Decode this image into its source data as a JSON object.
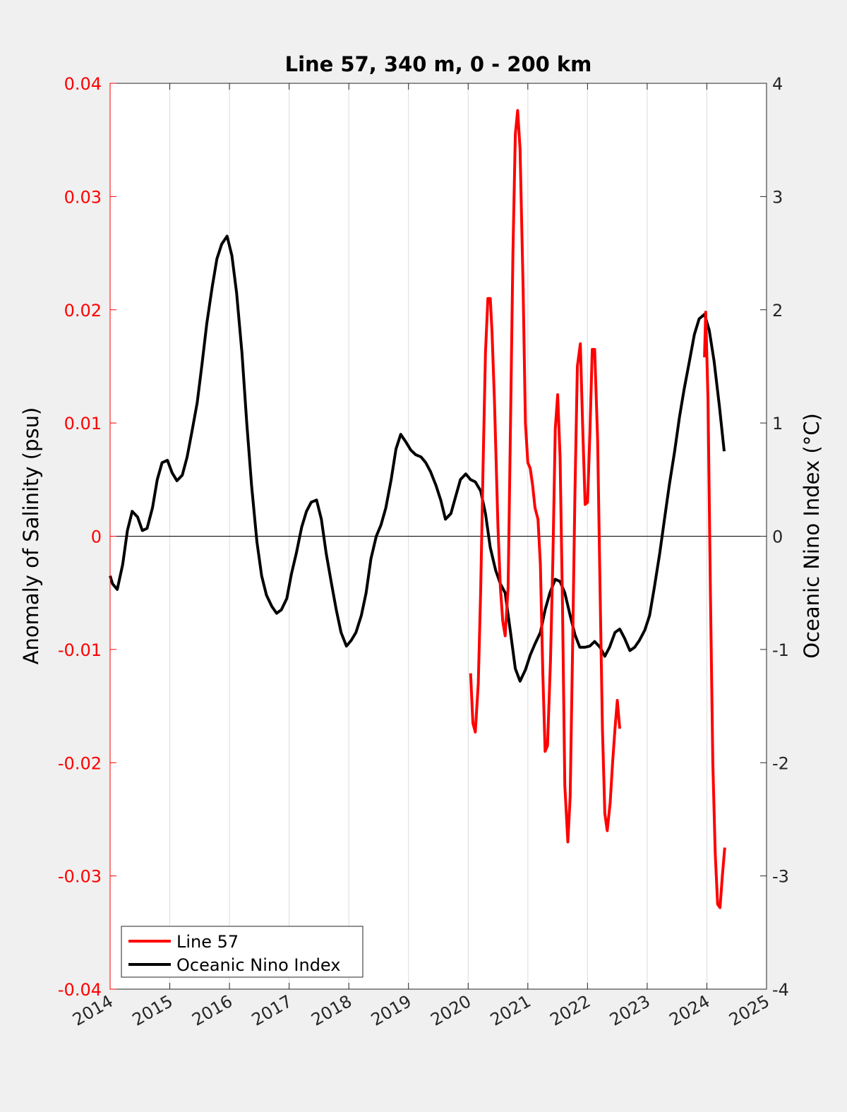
{
  "chart_data": {
    "type": "line",
    "title": "Line 57, 340 m, 0 - 200 km",
    "xlabel": "",
    "ylabel_left": "Anomaly of Salinity (psu)",
    "ylabel_right": "Oceanic Nino Index (°C)",
    "xlim": [
      2014,
      2025
    ],
    "ylim_left": [
      -0.04,
      0.04
    ],
    "ylim_right": [
      -4,
      4
    ],
    "x_ticks": [
      "2014",
      "2015",
      "2016",
      "2017",
      "2018",
      "2019",
      "2020",
      "2021",
      "2022",
      "2023",
      "2024",
      "2025"
    ],
    "y_ticks_left": [
      "-0.04",
      "-0.03",
      "-0.02",
      "-0.01",
      "0",
      "0.01",
      "0.02",
      "0.03",
      "0.04"
    ],
    "y_ticks_right": [
      "-4",
      "-3",
      "-2",
      "-1",
      "0",
      "1",
      "2",
      "3",
      "4"
    ],
    "grid": "vertical",
    "zero_line": true,
    "legend_position": "bottom-left",
    "colors": {
      "salinity": "#ff0000",
      "oni": "#000000",
      "left_axis": "#ff0000",
      "right_axis": "#262626",
      "background": "#f0f0f0",
      "plot_area": "#ffffff"
    },
    "series": [
      {
        "name": "Line 57",
        "axis": "left",
        "x": [
          2020.04,
          2020.08,
          2020.12,
          2020.17,
          2020.21,
          2020.25,
          2020.29,
          2020.33,
          2020.37,
          2020.4,
          2020.44,
          2020.5,
          2020.54,
          2020.58,
          2020.62,
          2020.67,
          2020.71,
          2020.75,
          2020.79,
          2020.83,
          2020.87,
          2020.92,
          2020.96,
          2021.0,
          2021.04,
          2021.08,
          2021.12,
          2021.17,
          2021.21,
          2021.25,
          2021.29,
          2021.33,
          2021.38,
          2021.42,
          2021.46,
          2021.5,
          2021.54,
          2021.58,
          2021.62,
          2021.67,
          2021.71,
          2021.75,
          2021.79,
          2021.83,
          2021.88,
          2021.92,
          2021.96,
          2022.0,
          2022.04,
          2022.08,
          2022.12,
          2022.17,
          2022.21,
          2022.25,
          2022.29,
          2022.33,
          2022.38,
          2022.42,
          2022.46,
          2022.5,
          2022.54,
          2022.58,
          2022.62,
          2022.67,
          2022.71,
          2022.75,
          2022.79,
          2022.83,
          2022.88,
          2022.92,
          2022.96,
          2023.0,
          2023.04,
          2023.96,
          2023.98,
          2024.02,
          2024.06,
          2024.1,
          2024.14,
          2024.18,
          2024.22,
          2024.26,
          2024.3
        ],
        "y": [
          -0.0121,
          -0.0165,
          -0.0173,
          -0.013,
          -0.0048,
          0.0062,
          0.0162,
          0.021,
          0.021,
          0.018,
          0.012,
          0.0008,
          -0.0045,
          -0.0075,
          -0.0088,
          -0.0045,
          0.01,
          0.025,
          0.0355,
          0.0376,
          0.0342,
          0.022,
          0.01,
          0.0065,
          0.006,
          0.0045,
          0.0025,
          0.0015,
          -0.0025,
          -0.012,
          -0.019,
          -0.0185,
          -0.011,
          -0.002,
          0.0095,
          0.0125,
          0.007,
          -0.006,
          -0.022,
          -0.027,
          -0.023,
          -0.01,
          0.004,
          0.015,
          0.017,
          0.0095,
          0.0028,
          0.003,
          0.009,
          0.0165,
          0.0165,
          0.0085,
          -0.0045,
          -0.017,
          -0.0245,
          -0.026,
          -0.0235,
          -0.02,
          -0.017,
          -0.0145,
          -0.017,
          null,
          null,
          null,
          null,
          null,
          null,
          null,
          null,
          null,
          null,
          null,
          null,
          0.0158,
          0.0198,
          0.012,
          -0.005,
          -0.02,
          -0.028,
          -0.0325,
          -0.0328,
          -0.03,
          -0.0275
        ]
      },
      {
        "name": "Oceanic Nino Index",
        "axis": "right",
        "x": [
          2014.0,
          2014.04,
          2014.12,
          2014.21,
          2014.29,
          2014.37,
          2014.46,
          2014.54,
          2014.62,
          2014.71,
          2014.79,
          2014.87,
          2014.96,
          2015.04,
          2015.12,
          2015.21,
          2015.29,
          2015.37,
          2015.46,
          2015.54,
          2015.62,
          2015.71,
          2015.79,
          2015.87,
          2015.96,
          2016.04,
          2016.12,
          2016.21,
          2016.29,
          2016.37,
          2016.46,
          2016.54,
          2016.62,
          2016.71,
          2016.79,
          2016.87,
          2016.96,
          2017.04,
          2017.12,
          2017.21,
          2017.29,
          2017.37,
          2017.46,
          2017.54,
          2017.62,
          2017.71,
          2017.79,
          2017.87,
          2017.96,
          2018.04,
          2018.12,
          2018.21,
          2018.29,
          2018.37,
          2018.46,
          2018.54,
          2018.62,
          2018.71,
          2018.79,
          2018.87,
          2018.96,
          2019.04,
          2019.12,
          2019.21,
          2019.29,
          2019.37,
          2019.46,
          2019.54,
          2019.62,
          2019.71,
          2019.79,
          2019.87,
          2019.96,
          2020.04,
          2020.12,
          2020.21,
          2020.29,
          2020.37,
          2020.46,
          2020.54,
          2020.62,
          2020.71,
          2020.79,
          2020.87,
          2020.96,
          2021.04,
          2021.12,
          2021.21,
          2021.29,
          2021.37,
          2021.46,
          2021.54,
          2021.62,
          2021.71,
          2021.79,
          2021.87,
          2021.96,
          2022.04,
          2022.12,
          2022.21,
          2022.29,
          2022.37,
          2022.46,
          2022.54,
          2022.62,
          2022.71,
          2022.79,
          2022.87,
          2022.96,
          2023.04,
          2023.12,
          2023.21,
          2023.29,
          2023.37,
          2023.46,
          2023.54,
          2023.62,
          2023.71,
          2023.79,
          2023.87,
          2023.96,
          2024.04,
          2024.12,
          2024.21,
          2024.29
        ],
        "y": [
          -0.35,
          -0.42,
          -0.47,
          -0.25,
          0.05,
          0.22,
          0.17,
          0.05,
          0.07,
          0.25,
          0.5,
          0.65,
          0.67,
          0.56,
          0.49,
          0.54,
          0.7,
          0.92,
          1.18,
          1.52,
          1.88,
          2.2,
          2.45,
          2.58,
          2.65,
          2.48,
          2.15,
          1.62,
          1.0,
          0.45,
          -0.05,
          -0.35,
          -0.52,
          -0.62,
          -0.68,
          -0.65,
          -0.55,
          -0.33,
          -0.15,
          0.08,
          0.22,
          0.3,
          0.32,
          0.15,
          -0.15,
          -0.42,
          -0.65,
          -0.85,
          -0.97,
          -0.92,
          -0.85,
          -0.7,
          -0.5,
          -0.2,
          0.0,
          0.1,
          0.25,
          0.5,
          0.77,
          0.9,
          0.83,
          0.76,
          0.72,
          0.7,
          0.65,
          0.57,
          0.45,
          0.32,
          0.15,
          0.2,
          0.35,
          0.5,
          0.55,
          0.5,
          0.48,
          0.4,
          0.2,
          -0.1,
          -0.3,
          -0.42,
          -0.5,
          -0.85,
          -1.17,
          -1.28,
          -1.18,
          -1.05,
          -0.95,
          -0.85,
          -0.65,
          -0.5,
          -0.38,
          -0.4,
          -0.5,
          -0.7,
          -0.87,
          -0.98,
          -0.98,
          -0.97,
          -0.93,
          -0.98,
          -1.06,
          -0.98,
          -0.85,
          -0.82,
          -0.9,
          -1.01,
          -0.98,
          -0.92,
          -0.83,
          -0.7,
          -0.45,
          -0.15,
          0.15,
          0.45,
          0.75,
          1.05,
          1.3,
          1.55,
          1.78,
          1.92,
          1.96,
          1.82,
          1.55,
          1.15,
          0.75
        ]
      }
    ]
  }
}
